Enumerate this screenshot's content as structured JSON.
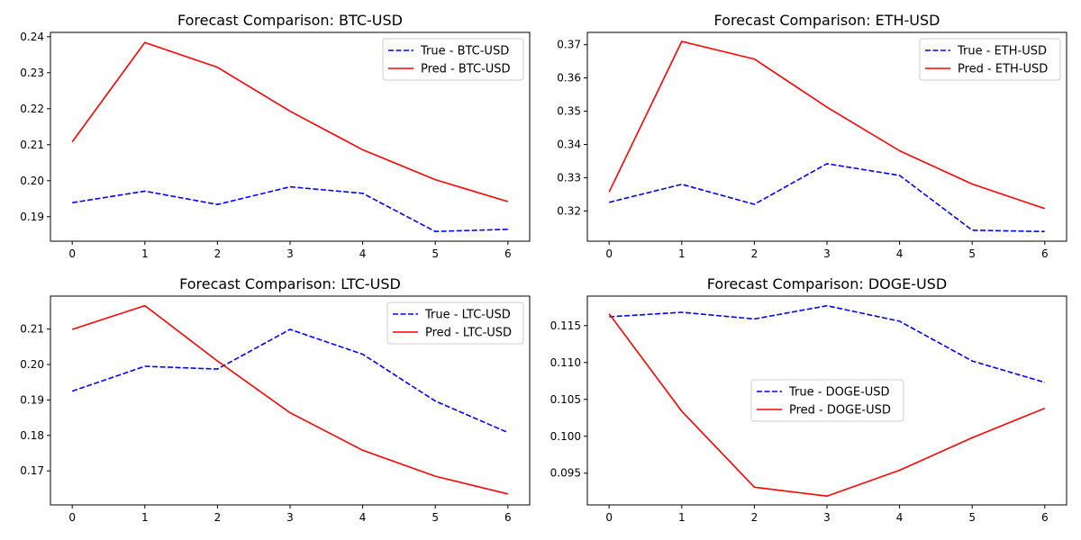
{
  "colors": {
    "true_series": "#0000ff",
    "pred_series": "#ff0000",
    "axes": "#000000",
    "background": "#ffffff",
    "legend_border": "#cccccc"
  },
  "chart_data": [
    {
      "type": "line",
      "title": "Forecast Comparison: BTC-USD",
      "xlabel": "",
      "ylabel": "",
      "grid": false,
      "legend_position": "upper right",
      "xlim": [
        -0.3,
        6.3
      ],
      "ylim": [
        0.1832,
        0.2412
      ],
      "xticks": [
        0,
        1,
        2,
        3,
        4,
        5,
        6
      ],
      "yticks": [
        0.19,
        0.2,
        0.21,
        0.22,
        0.23,
        0.24
      ],
      "ytick_labels": [
        "0.19",
        "0.20",
        "0.21",
        "0.22",
        "0.23",
        "0.24"
      ],
      "x": [
        0,
        1,
        2,
        3,
        4,
        5,
        6
      ],
      "series": [
        {
          "name": "True - BTC-USD",
          "style": "dashed",
          "values": [
            0.1939,
            0.1971,
            0.1934,
            0.1983,
            0.1965,
            0.1859,
            0.1865
          ]
        },
        {
          "name": "Pred - BTC-USD",
          "style": "solid",
          "values": [
            0.2108,
            0.2384,
            0.2315,
            0.2193,
            0.2086,
            0.2003,
            0.1942
          ]
        }
      ]
    },
    {
      "type": "line",
      "title": "Forecast Comparison: ETH-USD",
      "xlabel": "",
      "ylabel": "",
      "grid": false,
      "legend_position": "upper right",
      "xlim": [
        -0.3,
        6.3
      ],
      "ylim": [
        0.3109,
        0.3737
      ],
      "xticks": [
        0,
        1,
        2,
        3,
        4,
        5,
        6
      ],
      "yticks": [
        0.32,
        0.33,
        0.34,
        0.35,
        0.36,
        0.37
      ],
      "ytick_labels": [
        "0.32",
        "0.33",
        "0.34",
        "0.35",
        "0.36",
        "0.37"
      ],
      "x": [
        0,
        1,
        2,
        3,
        4,
        5,
        6
      ],
      "series": [
        {
          "name": "True - ETH-USD",
          "style": "dashed",
          "values": [
            0.3226,
            0.328,
            0.322,
            0.3342,
            0.3307,
            0.3142,
            0.3138
          ]
        },
        {
          "name": "Pred - ETH-USD",
          "style": "solid",
          "values": [
            0.3257,
            0.371,
            0.3657,
            0.3512,
            0.3381,
            0.3281,
            0.3207
          ]
        }
      ]
    },
    {
      "type": "line",
      "title": "Forecast Comparison: LTC-USD",
      "xlabel": "",
      "ylabel": "",
      "grid": false,
      "legend_position": "upper right",
      "xlim": [
        -0.3,
        6.3
      ],
      "ylim": [
        0.1604,
        0.2193
      ],
      "xticks": [
        0,
        1,
        2,
        3,
        4,
        5,
        6
      ],
      "yticks": [
        0.17,
        0.18,
        0.19,
        0.2,
        0.21
      ],
      "ytick_labels": [
        "0.17",
        "0.18",
        "0.19",
        "0.20",
        "0.21"
      ],
      "x": [
        0,
        1,
        2,
        3,
        4,
        5,
        6
      ],
      "series": [
        {
          "name": "True - LTC-USD",
          "style": "dashed",
          "values": [
            0.1925,
            0.1995,
            0.1987,
            0.2099,
            0.2029,
            0.1897,
            0.1808
          ]
        },
        {
          "name": "Pred - LTC-USD",
          "style": "solid",
          "values": [
            0.2099,
            0.2166,
            0.201,
            0.1864,
            0.1758,
            0.1685,
            0.1635
          ]
        }
      ]
    },
    {
      "type": "line",
      "title": "Forecast Comparison: DOGE-USD",
      "xlabel": "",
      "ylabel": "",
      "grid": false,
      "legend_position": "center",
      "xlim": [
        -0.3,
        6.3
      ],
      "ylim": [
        0.0907,
        0.119
      ],
      "xticks": [
        0,
        1,
        2,
        3,
        4,
        5,
        6
      ],
      "yticks": [
        0.095,
        0.1,
        0.105,
        0.11,
        0.115
      ],
      "ytick_labels": [
        "0.095",
        "0.100",
        "0.105",
        "0.110",
        "0.115"
      ],
      "x": [
        0,
        1,
        2,
        3,
        4,
        5,
        6
      ],
      "series": [
        {
          "name": "True - DOGE-USD",
          "style": "dashed",
          "values": [
            0.1162,
            0.1168,
            0.1159,
            0.1177,
            0.1156,
            0.1102,
            0.1073
          ]
        },
        {
          "name": "Pred - DOGE-USD",
          "style": "solid",
          "values": [
            0.1166,
            0.1034,
            0.0931,
            0.0919,
            0.0954,
            0.0998,
            0.1038
          ]
        }
      ]
    }
  ]
}
